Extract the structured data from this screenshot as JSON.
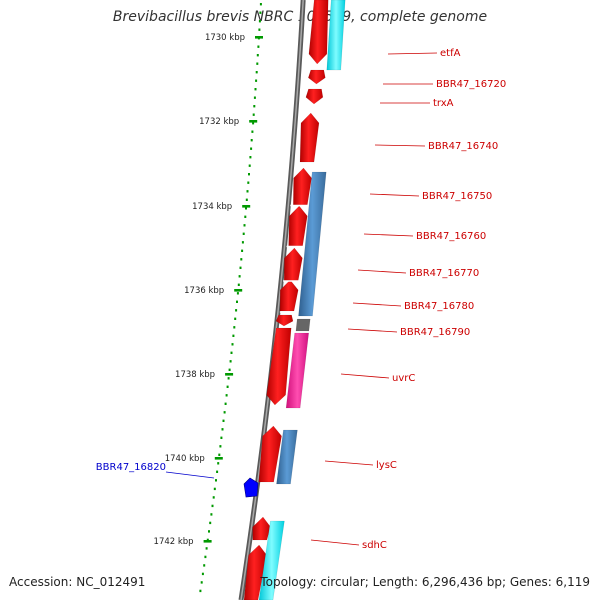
{
  "title": "Brevibacillus brevis NBRC 100599, complete genome",
  "footer": {
    "accession": "Accession: NC_012491",
    "topology": "Topology: circular; Length: 6,296,436 bp; Genes: 6,119"
  },
  "colors": {
    "backbone": "#7f7f7f",
    "cds": "#ff0000",
    "feature_blue": "#4682b4",
    "feature_cyan": "#00ffff",
    "feature_pink": "#ff1493",
    "feature_grey": "#666666",
    "tick": "#009900",
    "label_right": "#cc0000",
    "label_left": "#0000cc"
  },
  "scale_labels": [
    "1730 kbp",
    "1732 kbp",
    "1734 kbp",
    "1736 kbp",
    "1738 kbp",
    "1740 kbp",
    "1742 kbp"
  ],
  "gene_labels_right": [
    "etfA",
    "BBR47_16720",
    "trxA",
    "BBR47_16740",
    "BBR47_16750",
    "BBR47_16760",
    "BBR47_16770",
    "BBR47_16780",
    "BBR47_16790",
    "uvrC",
    "lysC",
    "sdhC"
  ],
  "gene_labels_left": [
    "BBR47_16820"
  ]
}
